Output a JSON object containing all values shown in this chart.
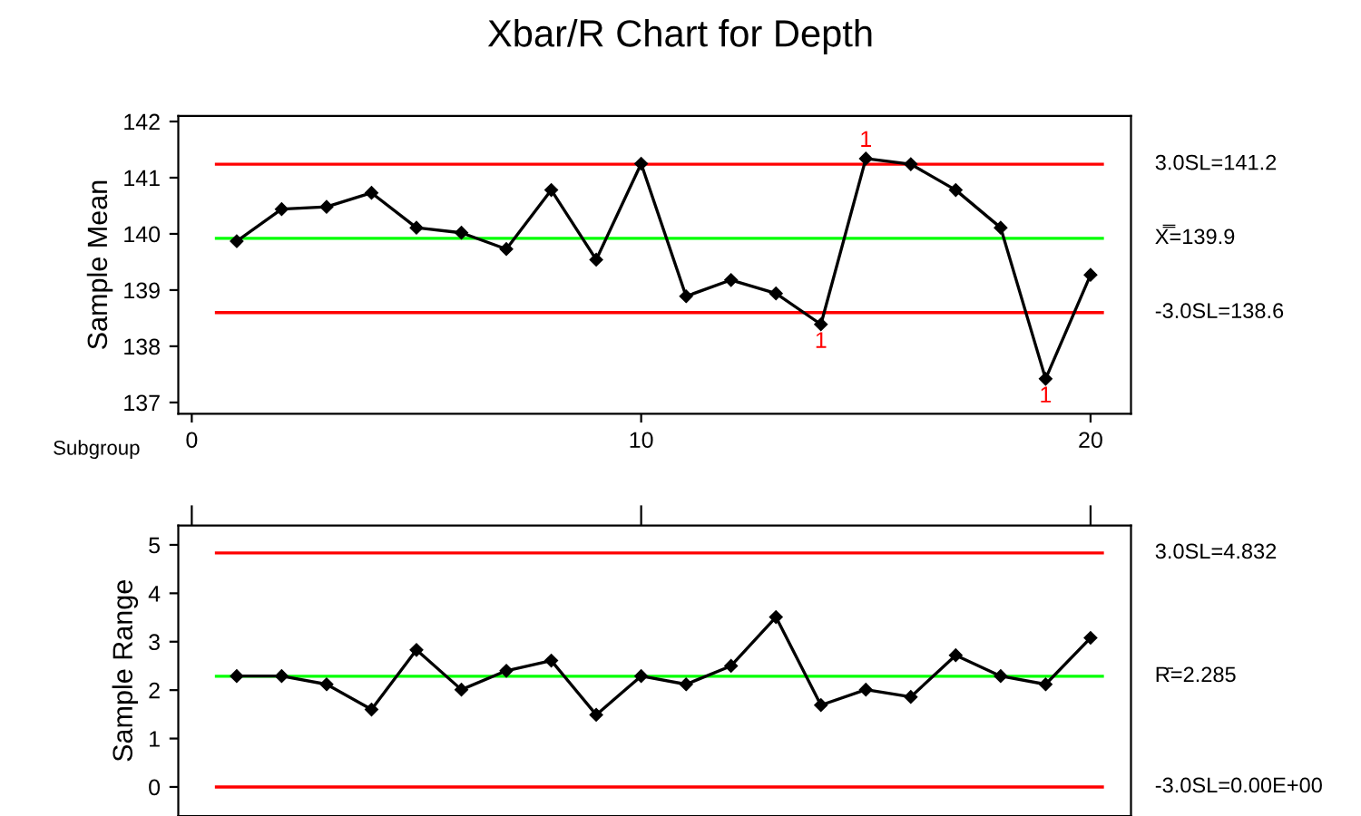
{
  "chart_data": [
    {
      "type": "line",
      "title": "Xbar/R Chart for Depth",
      "xlabel": "Subgroup",
      "ylabel": "Sample Mean",
      "x": [
        1,
        2,
        3,
        4,
        5,
        6,
        7,
        8,
        9,
        10,
        11,
        12,
        13,
        14,
        15,
        16,
        17,
        18,
        19,
        20
      ],
      "series": [
        {
          "color": "#000000",
          "values": [
            139.87,
            140.44,
            140.48,
            140.73,
            140.11,
            140.02,
            139.73,
            140.78,
            139.54,
            141.25,
            138.89,
            139.18,
            138.94,
            138.39,
            141.34,
            141.24,
            140.78,
            140.11,
            137.42,
            139.27
          ]
        }
      ],
      "xlim": [
        -0.3,
        20.9
      ],
      "xticks": [
        0,
        10,
        20
      ],
      "ylim": [
        136.8,
        142.1
      ],
      "yticks": [
        137,
        138,
        139,
        140,
        141,
        142
      ],
      "ref_lines": [
        {
          "axis": "y",
          "value": 141.24,
          "label": "3.0SL=141.2",
          "color": "#ff0000"
        },
        {
          "axis": "y",
          "value": 139.92,
          "label": "X̿=139.9",
          "color": "#00ff00"
        },
        {
          "axis": "y",
          "value": 138.6,
          "label": "-3.0SL=138.6",
          "color": "#ff0000"
        }
      ],
      "annotations": [
        {
          "text": "1",
          "x": 14,
          "y": 138.39
        },
        {
          "text": "1",
          "x": 15,
          "y": 141.34
        },
        {
          "text": "1",
          "x": 19,
          "y": 137.42
        }
      ],
      "marker": "diamond",
      "grid": false,
      "legend": false
    },
    {
      "type": "line",
      "ylabel": "Sample Range",
      "x": [
        1,
        2,
        3,
        4,
        5,
        6,
        7,
        8,
        9,
        10,
        11,
        12,
        13,
        14,
        15,
        16,
        17,
        18,
        19,
        20
      ],
      "series": [
        {
          "color": "#000000",
          "values": [
            2.29,
            2.29,
            2.12,
            1.6,
            2.83,
            2.01,
            2.4,
            2.61,
            1.49,
            2.29,
            2.12,
            2.5,
            3.51,
            1.69,
            2.01,
            1.86,
            2.72,
            2.29,
            2.12,
            3.08
          ]
        }
      ],
      "xlim": [
        -0.3,
        20.9
      ],
      "xticks": [
        {
          "value": 0,
          "label": null
        },
        {
          "value": 10,
          "label": null
        },
        {
          "value": 20,
          "label": null
        }
      ],
      "ylim": [
        -0.6,
        5.4
      ],
      "yticks": [
        0,
        1,
        2,
        3,
        4,
        5
      ],
      "tick_labels": "y",
      "ref_lines": [
        {
          "axis": "y",
          "value": 4.832,
          "label": "3.0SL=4.832",
          "color": "#ff0000"
        },
        {
          "axis": "y",
          "value": 2.285,
          "label": "R̄=2.285",
          "color": "#00ff00"
        },
        {
          "axis": "y",
          "value": 0,
          "label": "-3.0SL=0.00E+00",
          "color": "#ff0000"
        }
      ],
      "marker": "diamond",
      "grid": false,
      "legend": false
    }
  ]
}
